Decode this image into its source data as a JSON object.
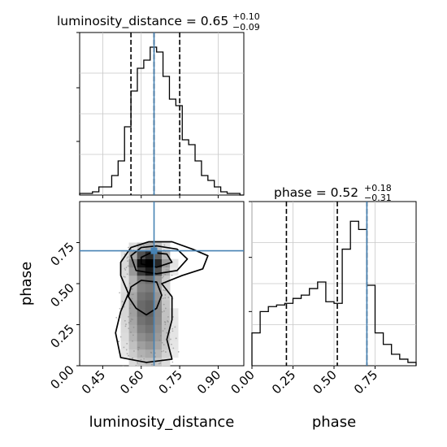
{
  "chart_data": [
    {
      "panel": "hist-luminosity-distance",
      "type": "bar",
      "param": "luminosity_distance",
      "title": {
        "name": "luminosity_distance",
        "value": "0.65",
        "plus": "+0.10",
        "minus": "−0.09"
      },
      "xlim": [
        0.36,
        1.0
      ],
      "ylim": [
        0,
        1.0
      ],
      "xticks": [
        0.45,
        0.6,
        0.75,
        0.9
      ],
      "xtick_labels": [
        "0.45",
        "0.60",
        "0.75",
        "0.90"
      ],
      "xlabel": "luminosity_distance",
      "bin_edges": [
        0.36,
        0.385,
        0.41,
        0.435,
        0.46,
        0.485,
        0.51,
        0.535,
        0.56,
        0.585,
        0.61,
        0.635,
        0.66,
        0.685,
        0.71,
        0.735,
        0.76,
        0.785,
        0.81,
        0.835,
        0.86,
        0.885,
        0.91,
        0.935,
        0.96,
        0.985,
        1.0
      ],
      "counts": [
        0.01,
        0.01,
        0.02,
        0.05,
        0.05,
        0.12,
        0.21,
        0.42,
        0.64,
        0.78,
        0.83,
        0.91,
        0.88,
        0.73,
        0.59,
        0.55,
        0.34,
        0.31,
        0.21,
        0.12,
        0.09,
        0.05,
        0.02,
        0.01,
        0.01,
        0.0
      ],
      "quantile_lines": [
        0.56,
        0.75
      ],
      "median_line": 0.65,
      "truth": 0.65
    },
    {
      "panel": "hist-phase",
      "type": "bar",
      "param": "phase",
      "title": {
        "name": "phase",
        "value": "0.52",
        "plus": "+0.18",
        "minus": "−0.31"
      },
      "xlim": [
        0.0,
        1.0
      ],
      "ylim": [
        0,
        1.0
      ],
      "xticks": [
        0.0,
        0.25,
        0.5,
        0.75
      ],
      "xtick_labels": [
        "0.00",
        "0.25",
        "0.50",
        "0.75"
      ],
      "xlabel": "phase",
      "bin_edges": [
        0.0,
        0.05,
        0.1,
        0.15,
        0.2,
        0.25,
        0.3,
        0.35,
        0.4,
        0.45,
        0.5,
        0.55,
        0.6,
        0.65,
        0.7,
        0.75,
        0.8,
        0.85,
        0.9,
        0.95,
        1.0
      ],
      "counts": [
        0.2,
        0.33,
        0.36,
        0.37,
        0.38,
        0.41,
        0.43,
        0.47,
        0.51,
        0.39,
        0.38,
        0.71,
        0.88,
        0.83,
        0.49,
        0.2,
        0.13,
        0.07,
        0.04,
        0.02
      ],
      "quantile_lines": [
        0.21,
        0.7
      ],
      "median_line": 0.52,
      "truth": 0.7
    },
    {
      "panel": "joint-luminosity-distance-phase",
      "type": "heatmap",
      "x_param": "luminosity_distance",
      "y_param": "phase",
      "xlim": [
        0.36,
        1.0
      ],
      "ylim": [
        0.0,
        1.0
      ],
      "xticks": [
        0.45,
        0.6,
        0.75,
        0.9
      ],
      "yticks": [
        0.0,
        0.25,
        0.5,
        0.75
      ],
      "ytick_labels": [
        "0.00",
        "0.25",
        "0.50",
        "0.75"
      ],
      "xlabel": "luminosity_distance",
      "ylabel": "phase",
      "truth": [
        0.65,
        0.7
      ],
      "density_peaks": [
        {
          "x": 0.63,
          "y": 0.63,
          "weight": 1.0,
          "sx": 0.045,
          "sy": 0.06
        },
        {
          "x": 0.62,
          "y": 0.4,
          "weight": 0.55,
          "sx": 0.05,
          "sy": 0.14
        },
        {
          "x": 0.63,
          "y": 0.15,
          "weight": 0.35,
          "sx": 0.06,
          "sy": 0.14
        }
      ],
      "contours": [
        [
          [
            0.52,
            0.63
          ],
          [
            0.56,
            0.72
          ],
          [
            0.63,
            0.755
          ],
          [
            0.72,
            0.755
          ],
          [
            0.8,
            0.71
          ],
          [
            0.86,
            0.67
          ],
          [
            0.84,
            0.59
          ],
          [
            0.76,
            0.55
          ],
          [
            0.68,
            0.5
          ],
          [
            0.72,
            0.42
          ],
          [
            0.72,
            0.28
          ],
          [
            0.7,
            0.16
          ],
          [
            0.72,
            0.04
          ],
          [
            0.62,
            0.02
          ],
          [
            0.52,
            0.05
          ],
          [
            0.5,
            0.2
          ],
          [
            0.52,
            0.33
          ],
          [
            0.55,
            0.44
          ],
          [
            0.52,
            0.55
          ]
        ],
        [
          [
            0.56,
            0.67
          ],
          [
            0.6,
            0.72
          ],
          [
            0.66,
            0.73
          ],
          [
            0.74,
            0.71
          ],
          [
            0.78,
            0.65
          ],
          [
            0.74,
            0.58
          ],
          [
            0.66,
            0.56
          ],
          [
            0.58,
            0.58
          ]
        ],
        [
          [
            0.6,
            0.66
          ],
          [
            0.64,
            0.69
          ],
          [
            0.7,
            0.68
          ],
          [
            0.72,
            0.63
          ],
          [
            0.66,
            0.6
          ],
          [
            0.6,
            0.62
          ]
        ],
        [
          [
            0.56,
            0.48
          ],
          [
            0.6,
            0.52
          ],
          [
            0.66,
            0.51
          ],
          [
            0.68,
            0.43
          ],
          [
            0.66,
            0.35
          ],
          [
            0.62,
            0.31
          ],
          [
            0.58,
            0.35
          ],
          [
            0.55,
            0.42
          ]
        ]
      ]
    }
  ]
}
